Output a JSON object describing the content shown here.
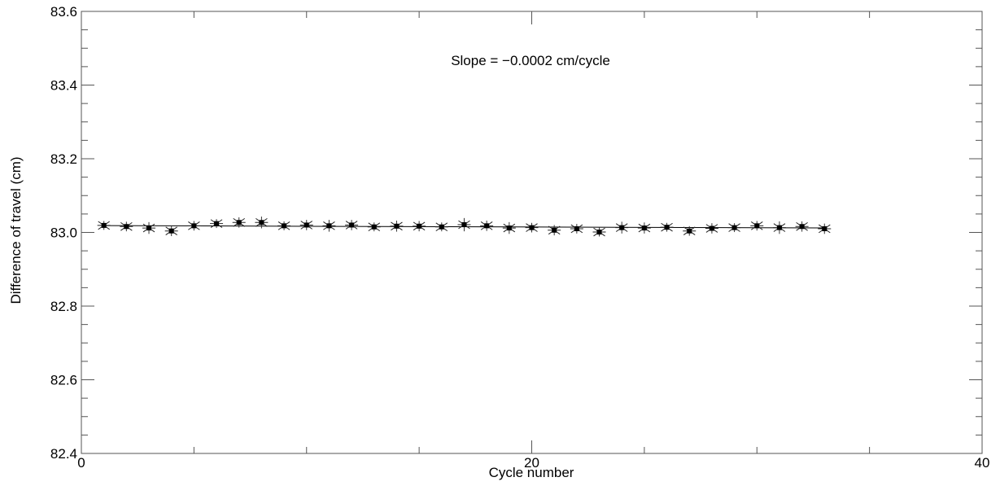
{
  "chart_data": {
    "type": "scatter",
    "title": "",
    "annotation": "Slope = −0.0002 cm/cycle",
    "xlabel": "Cycle number",
    "ylabel": "Difference of travel  (cm)",
    "xlim": [
      0,
      40
    ],
    "ylim": [
      82.4,
      83.6
    ],
    "x_ticks": [
      0,
      20,
      40
    ],
    "x_minor_step": 5,
    "y_ticks": [
      82.4,
      82.6,
      82.8,
      83.0,
      83.2,
      83.4,
      83.6
    ],
    "y_tick_labels": [
      "82.4",
      "82.6",
      "82.8",
      "83.0",
      "83.2",
      "83.4",
      "83.6"
    ],
    "y_minor_step": 0.05,
    "x_tick_labels": [
      "0",
      "20",
      "40"
    ],
    "grid": false,
    "series": [
      {
        "x": [
          1,
          2,
          3,
          4,
          5,
          6,
          7,
          8,
          9,
          10,
          11,
          12,
          13,
          14,
          15,
          16,
          17,
          18,
          19,
          20,
          21,
          22,
          23,
          24,
          25,
          26,
          27,
          28,
          29,
          30,
          31,
          32,
          33
        ],
        "y": [
          83.019,
          83.016,
          83.012,
          83.004,
          83.018,
          83.024,
          83.027,
          83.027,
          83.018,
          83.02,
          83.018,
          83.02,
          83.015,
          83.017,
          83.017,
          83.015,
          83.021,
          83.018,
          83.012,
          83.013,
          83.006,
          83.01,
          83.001,
          83.013,
          83.012,
          83.014,
          83.004,
          83.011,
          83.013,
          83.018,
          83.013,
          83.016,
          83.01
        ],
        "y_err": [
          0.012,
          0.013,
          0.016,
          0.014,
          0.013,
          0.012,
          0.014,
          0.016,
          0.012,
          0.014,
          0.016,
          0.014,
          0.012,
          0.015,
          0.014,
          0.012,
          0.018,
          0.014,
          0.016,
          0.013,
          0.014,
          0.013,
          0.012,
          0.016,
          0.015,
          0.012,
          0.013,
          0.014,
          0.012,
          0.013,
          0.017,
          0.014,
          0.014
        ]
      }
    ],
    "fit_line": {
      "x": [
        1,
        33
      ],
      "y": [
        83.0185,
        83.0121
      ]
    },
    "colors": {
      "axes": "#555555",
      "markers": "#000000"
    }
  }
}
